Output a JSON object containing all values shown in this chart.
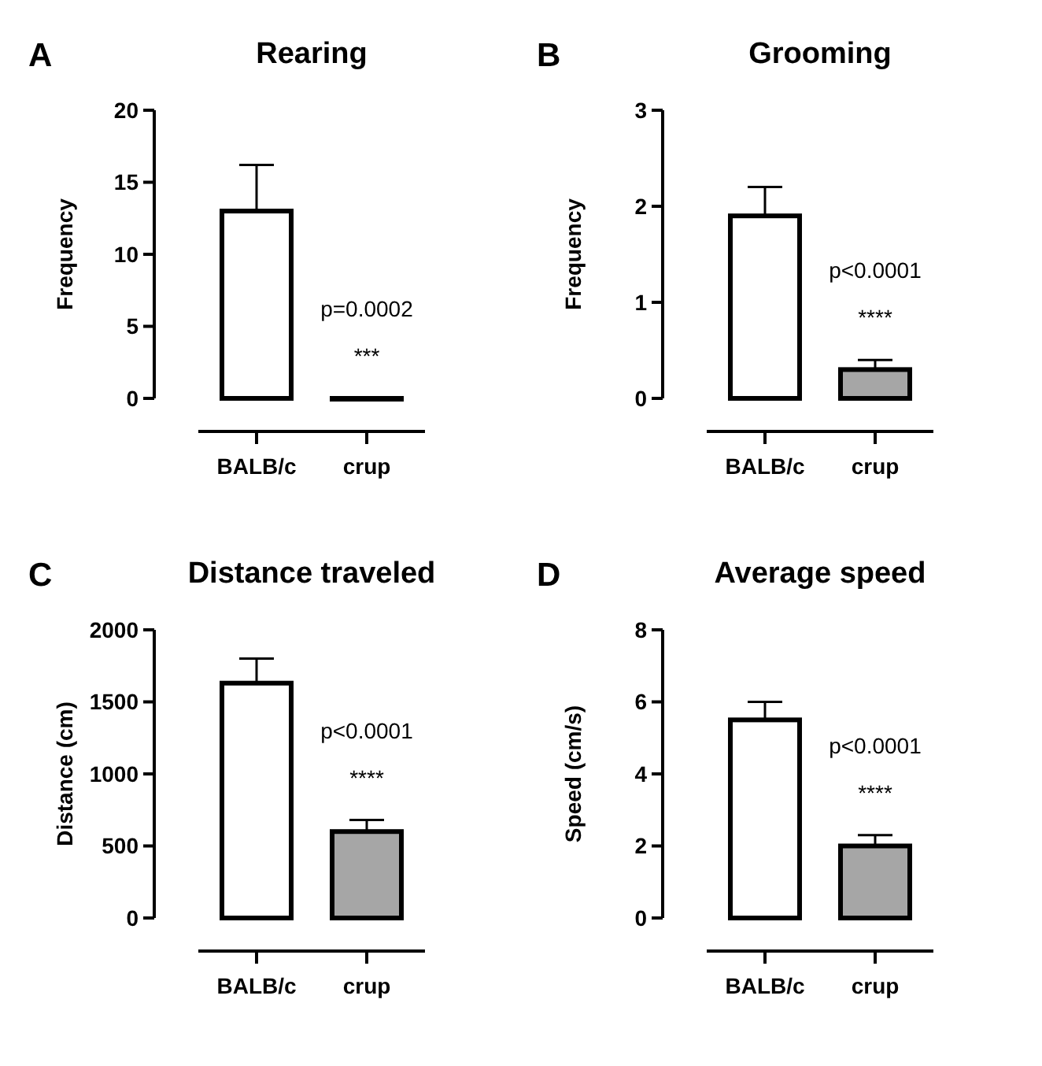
{
  "chart_data": [
    {
      "type": "bar",
      "title": "Rearing",
      "ylabel": "Frequency",
      "categories": [
        "BALB/c",
        "crup"
      ],
      "values": [
        13,
        0
      ],
      "errors": [
        3.2,
        null
      ],
      "colors": [
        "#ffffff",
        "#a6a6a6"
      ],
      "ylim": [
        0,
        20
      ],
      "yticks": [
        0,
        5,
        10,
        15,
        20
      ],
      "annotations": [
        "A",
        "p=0.0002",
        "***"
      ]
    },
    {
      "type": "bar",
      "title": "Grooming",
      "ylabel": "Frequency",
      "categories": [
        "BALB/c",
        "crup"
      ],
      "values": [
        1.9,
        0.3
      ],
      "errors": [
        0.3,
        0.1
      ],
      "colors": [
        "#ffffff",
        "#a6a6a6"
      ],
      "ylim": [
        0,
        3
      ],
      "yticks": [
        0,
        1,
        2,
        3
      ],
      "annotations": [
        "B",
        "p<0.0001",
        "****"
      ]
    },
    {
      "type": "bar",
      "title": "Distance traveled",
      "ylabel": "Distance (cm)",
      "categories": [
        "BALB/c",
        "crup"
      ],
      "values": [
        1630,
        600
      ],
      "errors": [
        170,
        80
      ],
      "colors": [
        "#ffffff",
        "#a6a6a6"
      ],
      "ylim": [
        0,
        2000
      ],
      "yticks": [
        0,
        500,
        1000,
        1500,
        2000
      ],
      "annotations": [
        "C",
        "p<0.0001",
        "****"
      ]
    },
    {
      "type": "bar",
      "title": "Average speed",
      "ylabel": "Speed (cm/s)",
      "categories": [
        "BALB/c",
        "crup"
      ],
      "values": [
        5.5,
        2.0
      ],
      "errors": [
        0.5,
        0.3
      ],
      "colors": [
        "#ffffff",
        "#a6a6a6"
      ],
      "ylim": [
        0,
        8
      ],
      "yticks": [
        0,
        2,
        4,
        6,
        8
      ],
      "annotations": [
        "D",
        "p<0.0001",
        "****"
      ]
    }
  ]
}
